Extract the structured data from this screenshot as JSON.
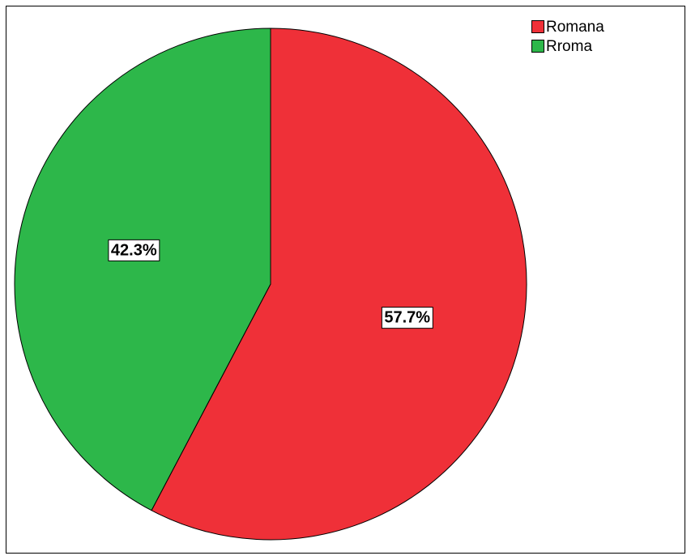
{
  "chart_data": {
    "type": "pie",
    "categories": [
      "Romana",
      "Rroma"
    ],
    "values": [
      57.7,
      42.3
    ],
    "labels": [
      "57.7%",
      "42.3%"
    ],
    "colors": [
      "#EF3038",
      "#2DB74A"
    ],
    "start_angle": "12 o'clock",
    "direction": "clockwise",
    "legend_position": "top-right"
  }
}
